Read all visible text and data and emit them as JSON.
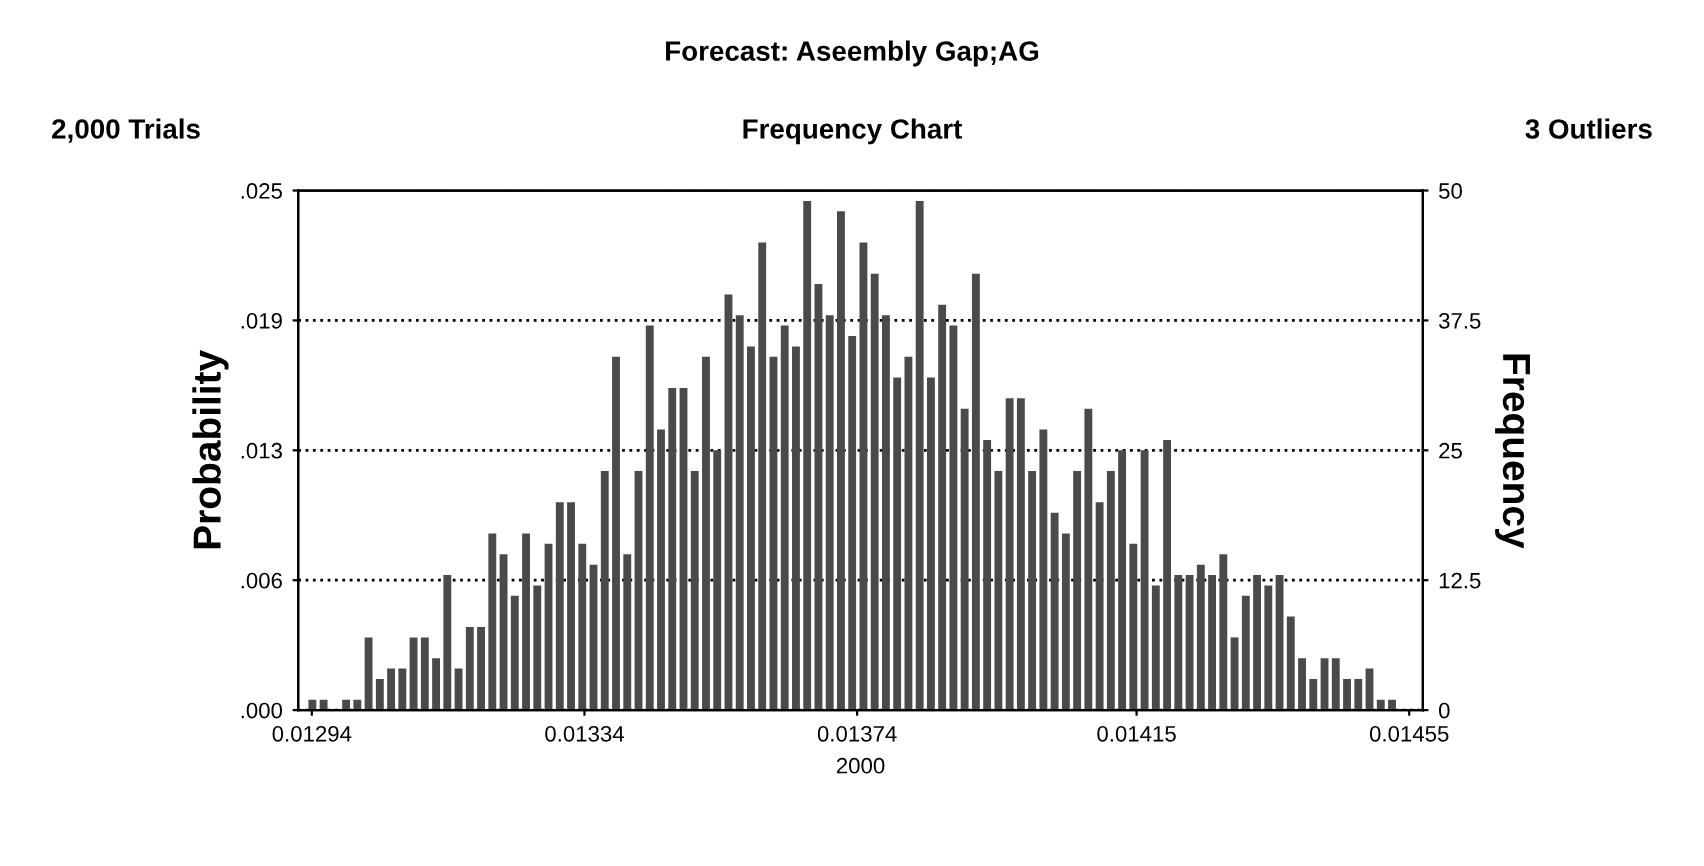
{
  "chart_data": {
    "type": "histogram",
    "title": "Forecast: Aseembly Gap;AG",
    "subtitle": "Frequency Chart",
    "xlabel": "2000",
    "ylabel": "Probability",
    "y2label": "Frequency",
    "annotations": [
      "2,000 Trials",
      "3 Outliers"
    ],
    "bins": [
      0.012935,
      0.0129515,
      0.012968,
      0.0129845,
      0.013001,
      0.0130175,
      0.013034,
      0.0130505,
      0.013067,
      0.0130835,
      0.0131,
      0.0131165,
      0.013133,
      0.0131495,
      0.013166,
      0.0131825,
      0.013199,
      0.0132155,
      0.013232,
      0.0132485,
      0.013265,
      0.0132815,
      0.013298,
      0.0133145,
      0.013331,
      0.0133475,
      0.013364,
      0.0133805,
      0.013397,
      0.0134135,
      0.01343,
      0.0134465,
      0.013463,
      0.0134795,
      0.013496,
      0.0135125,
      0.013529,
      0.0135455,
      0.013562,
      0.0135785,
      0.013595,
      0.0136115,
      0.013628,
      0.0136445,
      0.013661,
      0.0136775,
      0.013694,
      0.0137105,
      0.013727,
      0.0137435,
      0.01376,
      0.0137765,
      0.013793,
      0.0138095,
      0.013826,
      0.0138425,
      0.013859,
      0.0138755,
      0.013892,
      0.0139085,
      0.013925,
      0.0139415,
      0.013958,
      0.0139745,
      0.013991,
      0.0140075,
      0.014024,
      0.0140405,
      0.014057,
      0.0140735,
      0.01409,
      0.0141065,
      0.014123,
      0.0141395,
      0.014156,
      0.0141725,
      0.014189,
      0.0142055,
      0.014222,
      0.0142385,
      0.014255,
      0.0142715,
      0.014288,
      0.0143045,
      0.014321,
      0.0143375,
      0.014354,
      0.0143705,
      0.014387,
      0.0144035,
      0.01442,
      0.0144365,
      0.014453,
      0.0144695,
      0.014486,
      0.0145025,
      0.014519,
      0.0145355
    ],
    "series": [
      {
        "axis": "y2",
        "color": "#4a4a4a",
        "values": [
          1,
          1,
          0,
          1,
          1,
          7,
          3,
          4,
          4,
          7,
          7,
          5,
          13,
          4,
          8,
          8,
          17,
          15,
          11,
          17,
          12,
          16,
          20,
          20,
          16,
          14,
          23,
          34,
          15,
          23,
          37,
          27,
          31,
          31,
          23,
          34,
          25,
          40,
          38,
          35,
          45,
          34,
          37,
          35,
          49,
          41,
          38,
          48,
          36,
          45,
          42,
          38,
          32,
          34,
          49,
          32,
          39,
          37,
          29,
          42,
          26,
          23,
          30,
          30,
          23,
          27,
          19,
          17,
          23,
          29,
          20,
          23,
          25,
          16,
          25,
          12,
          26,
          13,
          13,
          14,
          13,
          15,
          7,
          11,
          13,
          12,
          13,
          9,
          5,
          3,
          5,
          5,
          3,
          3,
          4,
          1,
          1
        ]
      }
    ],
    "xlim": [
      0.01292,
      0.01457
    ],
    "xticks": [
      0.01294,
      0.01334,
      0.01374,
      0.01415,
      0.01455
    ],
    "ylim": [
      0,
      0.025
    ],
    "yticks": [
      {
        "value": 0,
        "label": ".000"
      },
      {
        "value": 0.00625,
        "label": ".006"
      },
      {
        "value": 0.0125,
        "label": ".013"
      },
      {
        "value": 0.01875,
        "label": ".019"
      },
      {
        "value": 0.025,
        "label": ".025"
      }
    ],
    "y2lim": [
      0,
      50
    ],
    "y2ticks": [
      0,
      12.5,
      25,
      37.5,
      50
    ],
    "grid": "y"
  }
}
